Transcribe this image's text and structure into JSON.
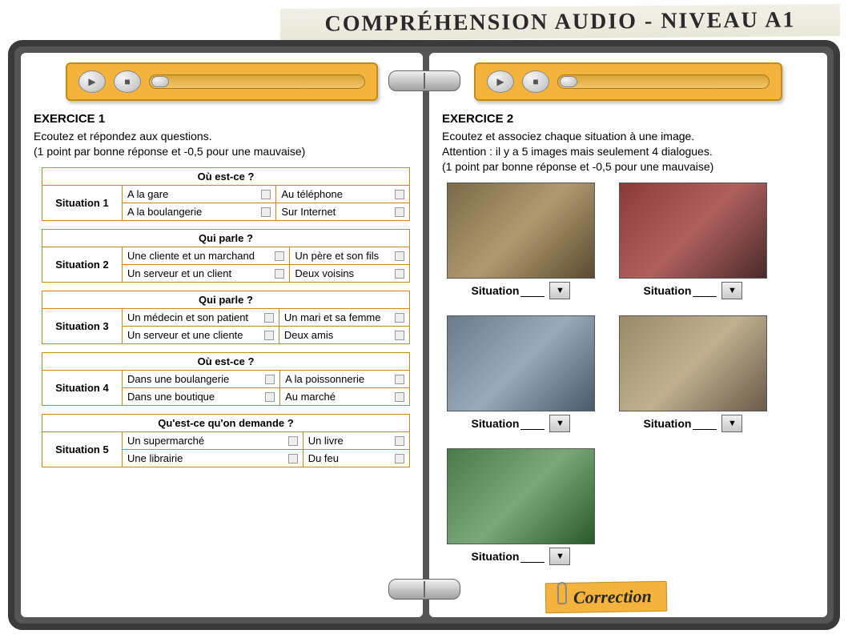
{
  "header": {
    "title": "COMPRÉHENSION AUDIO - NIVEAU A1"
  },
  "colors": {
    "accent": "#f3b33d",
    "accent_border": "#c78a1a",
    "notebook_frame": "#3a3a3a"
  },
  "exercise1": {
    "title": "EXERCICE 1",
    "instructions_l1": "Ecoutez et répondez aux questions.",
    "instructions_l2": "(1 point par bonne réponse et -0,5 pour une mauvaise)",
    "situations": [
      {
        "label": "Situation 1",
        "question": "Où est-ce ?",
        "options": [
          [
            "A la gare",
            "Au téléphone"
          ],
          [
            "A la boulangerie",
            "Sur Internet"
          ]
        ]
      },
      {
        "label": "Situation 2",
        "question": "Qui parle ?",
        "options": [
          [
            "Une cliente et un marchand",
            "Un père et son fils"
          ],
          [
            "Un serveur et un client",
            "Deux voisins"
          ]
        ]
      },
      {
        "label": "Situation 3",
        "question": "Qui parle ?",
        "options": [
          [
            "Un médecin et son patient",
            "Un mari et sa femme"
          ],
          [
            "Un serveur et une cliente",
            "Deux amis"
          ]
        ]
      },
      {
        "label": "Situation 4",
        "question": "Où est-ce ?",
        "options": [
          [
            "Dans une boulangerie",
            "A la poissonnerie"
          ],
          [
            "Dans une boutique",
            "Au marché"
          ]
        ]
      },
      {
        "label": "Situation 5",
        "question": "Qu'est-ce qu'on demande ?",
        "options": [
          [
            "Un supermarché",
            "Un livre"
          ],
          [
            "Une librairie",
            "Du feu"
          ]
        ]
      }
    ]
  },
  "exercise2": {
    "title": "EXERCICE 2",
    "instructions_l1": "Ecoutez et associez chaque situation à une image.",
    "instructions_l2": "Attention : il y a 5 images mais seulement 4 dialogues.",
    "instructions_l3": "(1 point par bonne réponse et -0,5 pour une mauvaise)",
    "image_label": "Situation",
    "images": [
      {
        "desc": "accueil-desk",
        "bg": "linear-gradient(135deg,#7a6a4a,#b09a70,#5a4a30)"
      },
      {
        "desc": "street-musicians",
        "bg": "linear-gradient(135deg,#8a3a3a,#b06060,#4a2a2a)"
      },
      {
        "desc": "library-reading",
        "bg": "linear-gradient(135deg,#6a7a8a,#9aaabb,#4a5a6a)"
      },
      {
        "desc": "writing-desk",
        "bg": "linear-gradient(135deg,#9a8a6a,#c0b090,#6a5a4a)"
      },
      {
        "desc": "park-group",
        "bg": "linear-gradient(135deg,#4a7a4a,#7aa87a,#2a5a2a)"
      }
    ]
  },
  "correction_label": "Correction"
}
